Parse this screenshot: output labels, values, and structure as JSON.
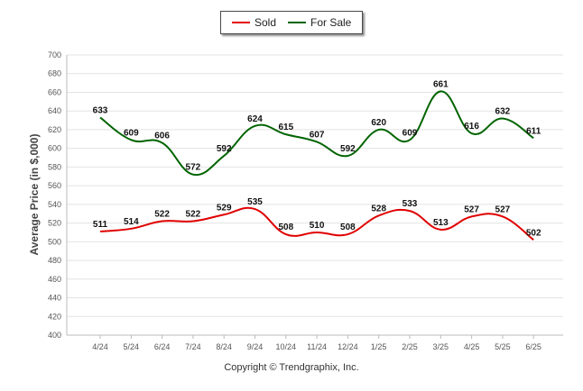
{
  "chart_data": {
    "type": "line",
    "categories": [
      "4/24",
      "5/24",
      "6/24",
      "7/24",
      "8/24",
      "9/24",
      "10/24",
      "11/24",
      "12/24",
      "1/25",
      "2/25",
      "3/25",
      "4/25",
      "5/25",
      "6/25"
    ],
    "series": [
      {
        "name": "Sold",
        "color": "#e00000",
        "values": [
          511,
          514,
          522,
          522,
          529,
          535,
          508,
          510,
          508,
          528,
          533,
          513,
          527,
          527,
          502
        ]
      },
      {
        "name": "For Sale",
        "color": "#006400",
        "values": [
          633,
          609,
          606,
          572,
          592,
          624,
          615,
          607,
          592,
          620,
          609,
          661,
          616,
          632,
          611
        ]
      }
    ],
    "ylabel": "Average Price (in $,000)",
    "ylim": [
      400,
      700
    ],
    "yticks": [
      400,
      420,
      440,
      460,
      480,
      500,
      520,
      540,
      560,
      580,
      600,
      620,
      640,
      660,
      680,
      700
    ],
    "grid": true,
    "legend": "top-center"
  },
  "credit": "Copyright © Trendgraphix, Inc."
}
